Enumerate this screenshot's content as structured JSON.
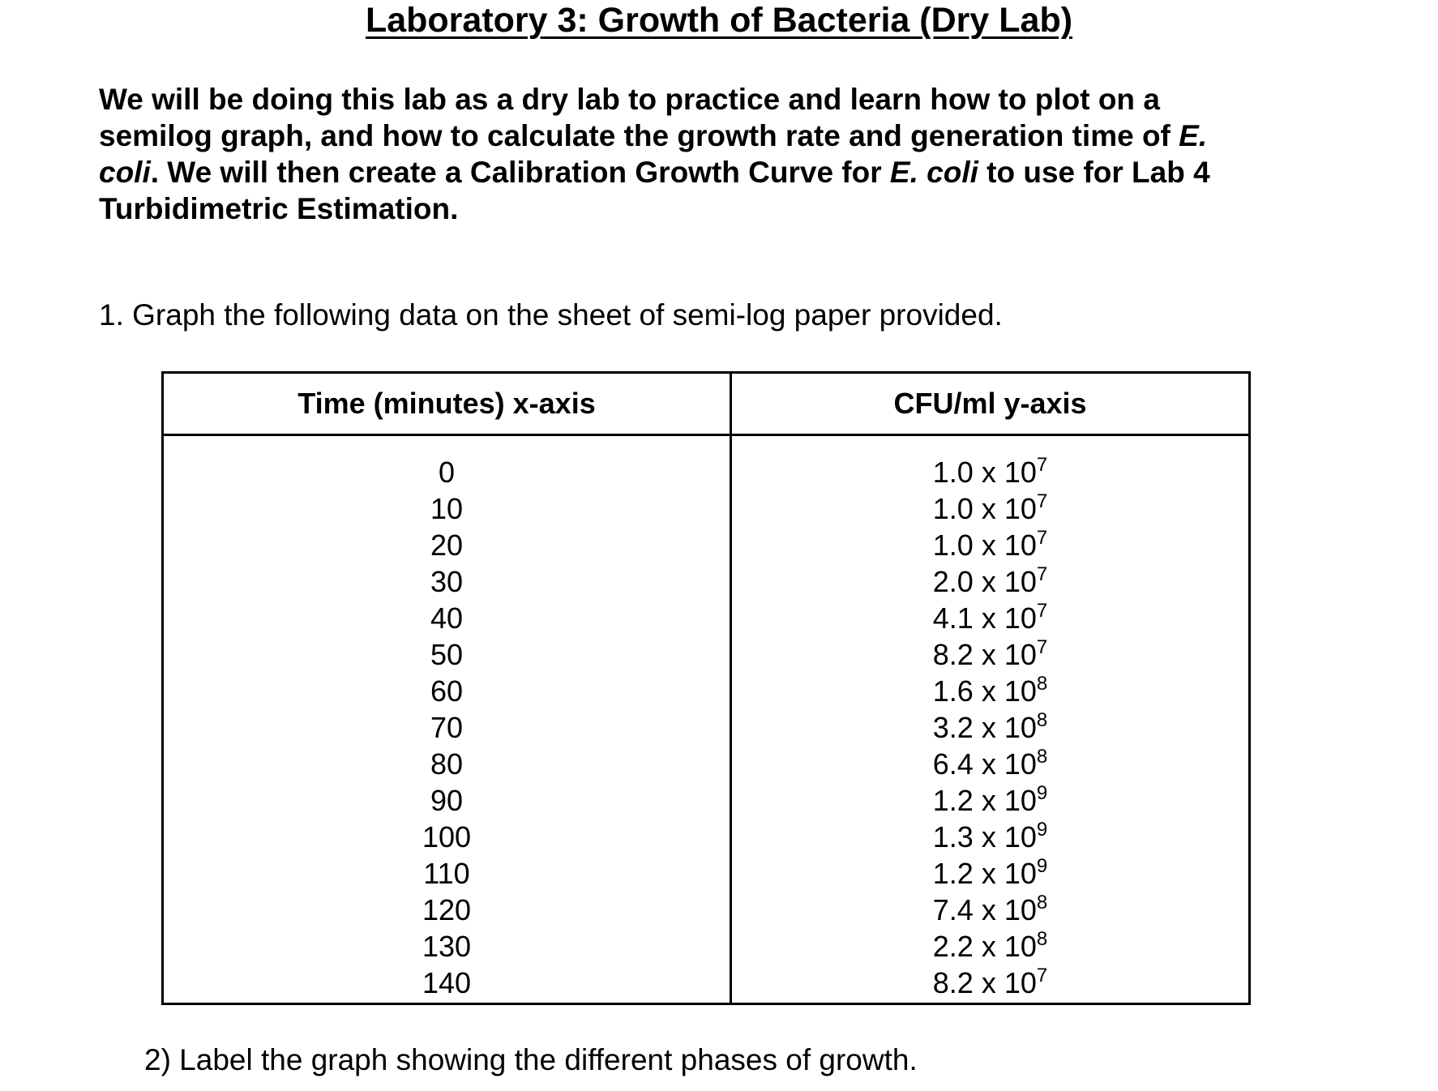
{
  "document": {
    "title": "Laboratory 3:  Growth of Bacteria (Dry Lab)",
    "intro": [
      [
        {
          "text": "We will be doing this lab as a dry lab to practice and learn how to plot on a",
          "italic": false
        }
      ],
      [
        {
          "text": "semilog graph, and how to calculate the growth rate and generation time of ",
          "italic": false
        },
        {
          "text": "E.",
          "italic": true
        }
      ],
      [
        {
          "text": "coli",
          "italic": true
        },
        {
          "text": ".  We will then create a Calibration Growth Curve for ",
          "italic": false
        },
        {
          "text": "E. coli",
          "italic": true
        },
        {
          "text": " to use for Lab 4",
          "italic": false
        }
      ],
      [
        {
          "text": "Turbidimetric Estimation.",
          "italic": false
        }
      ]
    ],
    "question_1": "1. Graph the following data on the sheet of semi-log paper provided.",
    "table": {
      "headers": [
        "Time (minutes) x-axis",
        "CFU/ml y-axis"
      ],
      "rows": [
        {
          "time": "0",
          "cfu_mantissa": "1.0 x 10",
          "cfu_exponent": "7"
        },
        {
          "time": "10",
          "cfu_mantissa": "1.0 x 10",
          "cfu_exponent": "7"
        },
        {
          "time": "20",
          "cfu_mantissa": "1.0 x 10",
          "cfu_exponent": "7"
        },
        {
          "time": "30",
          "cfu_mantissa": "2.0 x 10",
          "cfu_exponent": "7"
        },
        {
          "time": "40",
          "cfu_mantissa": "4.1 x 10",
          "cfu_exponent": "7"
        },
        {
          "time": "50",
          "cfu_mantissa": "8.2 x 10",
          "cfu_exponent": "7"
        },
        {
          "time": "60",
          "cfu_mantissa": "1.6 x 10",
          "cfu_exponent": "8"
        },
        {
          "time": "70",
          "cfu_mantissa": "3.2 x 10",
          "cfu_exponent": "8"
        },
        {
          "time": "80",
          "cfu_mantissa": "6.4 x 10",
          "cfu_exponent": "8"
        },
        {
          "time": "90",
          "cfu_mantissa": "1.2 x 10",
          "cfu_exponent": "9"
        },
        {
          "time": "100",
          "cfu_mantissa": "1.3 x 10",
          "cfu_exponent": "9"
        },
        {
          "time": "110",
          "cfu_mantissa": "1.2 x 10",
          "cfu_exponent": "9"
        },
        {
          "time": "120",
          "cfu_mantissa": "7.4 x 10",
          "cfu_exponent": "8"
        },
        {
          "time": "130",
          "cfu_mantissa": "2.2 x 10",
          "cfu_exponent": "8"
        },
        {
          "time": "140",
          "cfu_mantissa": "8.2 x 10",
          "cfu_exponent": "7"
        }
      ]
    },
    "question_2": "2)  Label the graph showing the different phases of growth."
  }
}
